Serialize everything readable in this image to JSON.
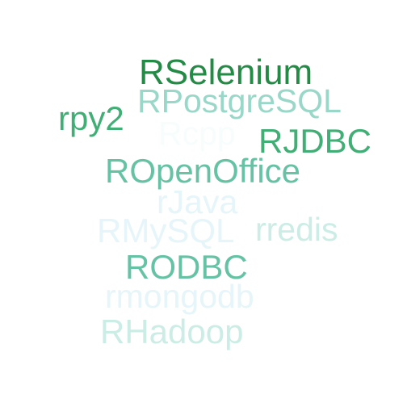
{
  "words": [
    {
      "key": "rselenium",
      "text": "RSelenium",
      "color": "#238b45"
    },
    {
      "key": "rpostgresql",
      "text": "RPostgreSQL",
      "color": "#99d8c9"
    },
    {
      "key": "rpy2",
      "text": "rpy2",
      "color": "#41ae76"
    },
    {
      "key": "rcpp",
      "text": "Rcpp",
      "color": "#f7fcfd"
    },
    {
      "key": "rjdbc",
      "text": "RJDBC",
      "color": "#41ae76"
    },
    {
      "key": "ropenoffice",
      "text": "ROpenOffice",
      "color": "#66c2a4"
    },
    {
      "key": "rjava",
      "text": "rJava",
      "color": "#e5f5f9"
    },
    {
      "key": "rmysql",
      "text": "RMySQL",
      "color": "#e5f5f9"
    },
    {
      "key": "rredis",
      "text": "rredis",
      "color": "#ccece6"
    },
    {
      "key": "rodbc",
      "text": "RODBC",
      "color": "#66c2a4"
    },
    {
      "key": "rmongodb",
      "text": "rmongodb",
      "color": "#e5f5f9"
    },
    {
      "key": "rhadoop",
      "text": "RHadoop",
      "color": "#ccece6"
    }
  ]
}
